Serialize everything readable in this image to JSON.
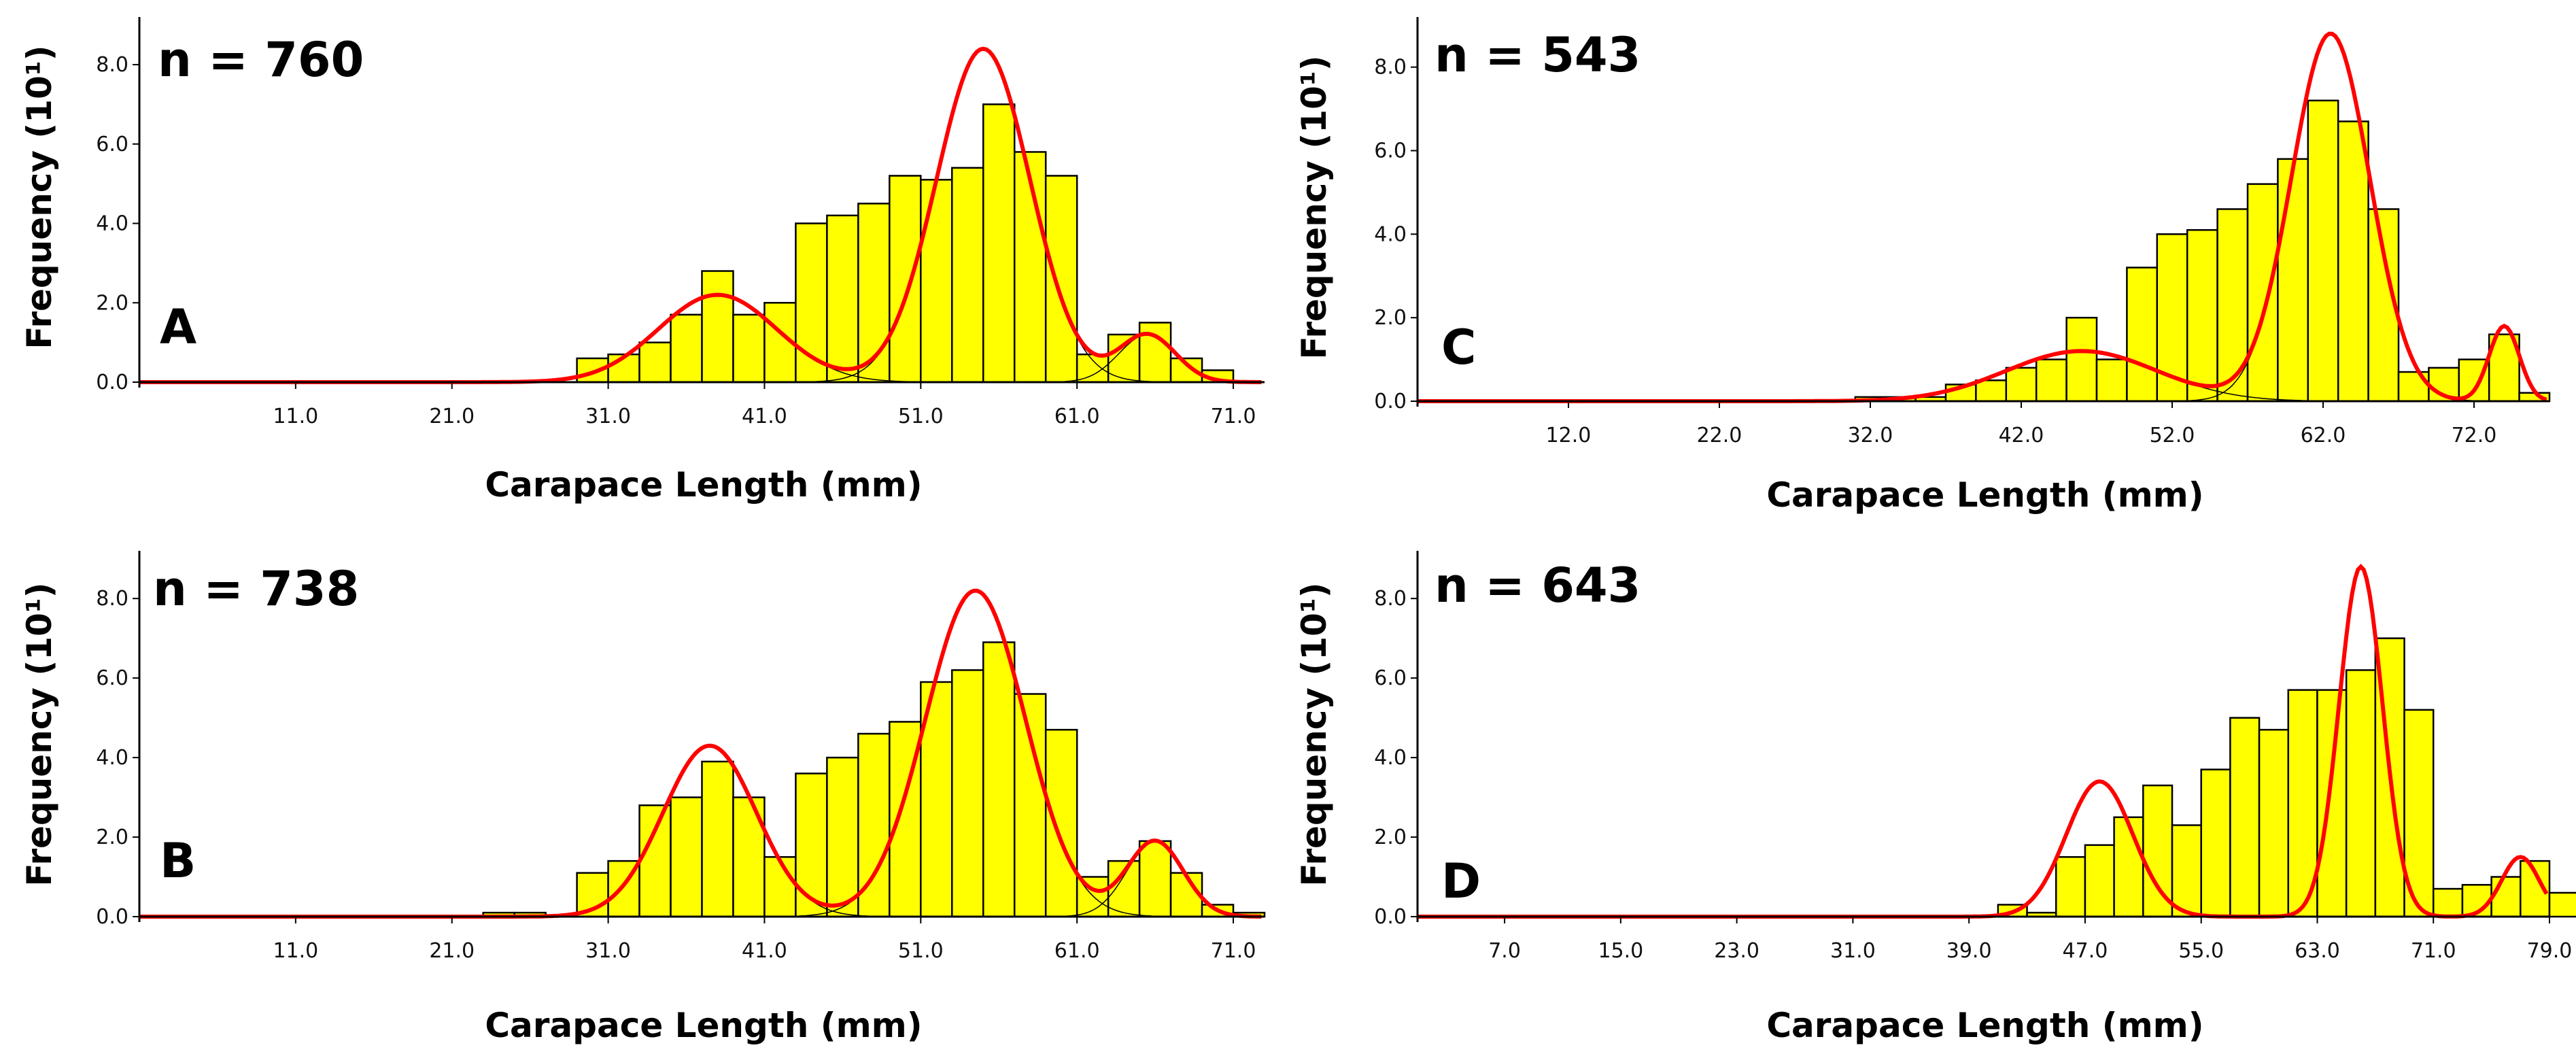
{
  "chart_data": [
    {
      "type": "bar",
      "panel": "A",
      "n_label": "n = 760",
      "xlabel": "Carapace Length (mm)",
      "ylabel": "Frequency (10¹)",
      "xlim": [
        1,
        73
      ],
      "ylim": [
        0,
        9.2
      ],
      "x_ticks": [
        11,
        21,
        31,
        41,
        51,
        61,
        71
      ],
      "x_tick_labels": [
        "11.0",
        "21.0",
        "31.0",
        "41.0",
        "51.0",
        "61.0",
        "71.0"
      ],
      "y_ticks": [
        0,
        2,
        4,
        6,
        8
      ],
      "y_tick_labels": [
        "0.0",
        "2.0",
        "4.0",
        "6.0",
        "8.0"
      ],
      "bin_width": 2,
      "bins": [
        {
          "x0": 29,
          "value": 0.6
        },
        {
          "x0": 31,
          "value": 0.7
        },
        {
          "x0": 33,
          "value": 1.0
        },
        {
          "x0": 35,
          "value": 1.7
        },
        {
          "x0": 37,
          "value": 2.8
        },
        {
          "x0": 39,
          "value": 1.7
        },
        {
          "x0": 41,
          "value": 2.0
        },
        {
          "x0": 43,
          "value": 4.0
        },
        {
          "x0": 45,
          "value": 4.2
        },
        {
          "x0": 47,
          "value": 4.5
        },
        {
          "x0": 49,
          "value": 5.2
        },
        {
          "x0": 51,
          "value": 5.1
        },
        {
          "x0": 53,
          "value": 5.4
        },
        {
          "x0": 55,
          "value": 7.0
        },
        {
          "x0": 57,
          "value": 5.8
        },
        {
          "x0": 59,
          "value": 5.2
        },
        {
          "x0": 61,
          "value": 0.7
        },
        {
          "x0": 63,
          "value": 1.2
        },
        {
          "x0": 65,
          "value": 1.5
        },
        {
          "x0": 67,
          "value": 0.6
        },
        {
          "x0": 69,
          "value": 0.3
        }
      ],
      "fit_components": [
        {
          "mean": 38,
          "sd": 3.8,
          "amp": 2.2
        },
        {
          "mean": 55,
          "sd": 3.0,
          "amp": 8.4
        },
        {
          "mean": 65.5,
          "sd": 1.8,
          "amp": 1.2
        }
      ]
    },
    {
      "type": "bar",
      "panel": "C",
      "n_label": "n = 543",
      "xlabel": "Carapace Length (mm)",
      "ylabel": "Frequency (10¹)",
      "xlim": [
        2,
        77
      ],
      "ylim": [
        0,
        9.2
      ],
      "x_ticks": [
        12,
        22,
        32,
        42,
        52,
        62,
        72
      ],
      "x_tick_labels": [
        "12.0",
        "22.0",
        "32.0",
        "42.0",
        "52.0",
        "62.0",
        "72.0"
      ],
      "y_ticks": [
        0,
        2,
        4,
        6,
        8
      ],
      "y_tick_labels": [
        "0.0",
        "2.0",
        "4.0",
        "6.0",
        "8.0"
      ],
      "bin_width": 2,
      "bins": [
        {
          "x0": 31,
          "value": 0.1
        },
        {
          "x0": 33,
          "value": 0.1
        },
        {
          "x0": 35,
          "value": 0.1
        },
        {
          "x0": 37,
          "value": 0.4
        },
        {
          "x0": 39,
          "value": 0.5
        },
        {
          "x0": 41,
          "value": 0.8
        },
        {
          "x0": 43,
          "value": 1.0
        },
        {
          "x0": 45,
          "value": 2.0
        },
        {
          "x0": 47,
          "value": 1.0
        },
        {
          "x0": 49,
          "value": 3.2
        },
        {
          "x0": 51,
          "value": 4.0
        },
        {
          "x0": 53,
          "value": 4.1
        },
        {
          "x0": 55,
          "value": 4.6
        },
        {
          "x0": 57,
          "value": 5.2
        },
        {
          "x0": 59,
          "value": 5.8
        },
        {
          "x0": 61,
          "value": 7.2
        },
        {
          "x0": 63,
          "value": 6.7
        },
        {
          "x0": 65,
          "value": 4.6
        },
        {
          "x0": 67,
          "value": 0.7
        },
        {
          "x0": 69,
          "value": 0.8
        },
        {
          "x0": 71,
          "value": 1.0
        },
        {
          "x0": 73,
          "value": 1.6
        },
        {
          "x0": 75,
          "value": 0.2
        }
      ],
      "fit_components": [
        {
          "mean": 46,
          "sd": 5.0,
          "amp": 1.2
        },
        {
          "mean": 62.5,
          "sd": 2.6,
          "amp": 8.8
        },
        {
          "mean": 74,
          "sd": 1.0,
          "amp": 1.8
        }
      ]
    },
    {
      "type": "bar",
      "panel": "B",
      "n_label": "n = 738",
      "xlabel": "Carapace Length (mm)",
      "ylabel": "Frequency (10¹)",
      "xlim": [
        1,
        73
      ],
      "ylim": [
        0,
        9.2
      ],
      "x_ticks": [
        11,
        21,
        31,
        41,
        51,
        61,
        71
      ],
      "x_tick_labels": [
        "11.0",
        "21.0",
        "31.0",
        "41.0",
        "51.0",
        "61.0",
        "71.0"
      ],
      "y_ticks": [
        0,
        2,
        4,
        6,
        8
      ],
      "y_tick_labels": [
        "0.0",
        "2.0",
        "4.0",
        "6.0",
        "8.0"
      ],
      "bin_width": 2,
      "bins": [
        {
          "x0": 23,
          "value": 0.1
        },
        {
          "x0": 25,
          "value": 0.1
        },
        {
          "x0": 29,
          "value": 1.1
        },
        {
          "x0": 31,
          "value": 1.4
        },
        {
          "x0": 33,
          "value": 2.8
        },
        {
          "x0": 35,
          "value": 3.0
        },
        {
          "x0": 37,
          "value": 3.9
        },
        {
          "x0": 39,
          "value": 3.0
        },
        {
          "x0": 41,
          "value": 1.5
        },
        {
          "x0": 43,
          "value": 3.6
        },
        {
          "x0": 45,
          "value": 4.0
        },
        {
          "x0": 47,
          "value": 4.6
        },
        {
          "x0": 49,
          "value": 4.9
        },
        {
          "x0": 51,
          "value": 5.9
        },
        {
          "x0": 53,
          "value": 6.2
        },
        {
          "x0": 55,
          "value": 6.9
        },
        {
          "x0": 57,
          "value": 5.6
        },
        {
          "x0": 59,
          "value": 4.7
        },
        {
          "x0": 61,
          "value": 1.0
        },
        {
          "x0": 63,
          "value": 1.4
        },
        {
          "x0": 65,
          "value": 1.9
        },
        {
          "x0": 67,
          "value": 1.1
        },
        {
          "x0": 69,
          "value": 0.3
        },
        {
          "x0": 71,
          "value": 0.1
        }
      ],
      "fit_components": [
        {
          "mean": 37.5,
          "sd": 3.0,
          "amp": 4.3
        },
        {
          "mean": 54.5,
          "sd": 3.2,
          "amp": 8.2
        },
        {
          "mean": 66,
          "sd": 1.8,
          "amp": 1.9
        }
      ]
    },
    {
      "type": "bar",
      "panel": "D",
      "n_label": "n = 643",
      "xlabel": "Carapace Length (mm)",
      "ylabel": "Frequency (10¹)",
      "xlim": [
        1,
        79
      ],
      "ylim": [
        0,
        9.2
      ],
      "x_ticks": [
        7,
        15,
        23,
        31,
        39,
        47,
        55,
        63,
        71,
        79
      ],
      "x_tick_labels": [
        "7.0",
        "15.0",
        "23.0",
        "31.0",
        "39.0",
        "47.0",
        "55.0",
        "63.0",
        "71.0",
        "79.0"
      ],
      "y_ticks": [
        0,
        2,
        4,
        6,
        8
      ],
      "y_tick_labels": [
        "0.0",
        "2.0",
        "4.0",
        "6.0",
        "8.0"
      ],
      "bin_width": 2,
      "bins": [
        {
          "x0": 41,
          "value": 0.3
        },
        {
          "x0": 43,
          "value": 0.1
        },
        {
          "x0": 45,
          "value": 1.5
        },
        {
          "x0": 47,
          "value": 1.8
        },
        {
          "x0": 49,
          "value": 2.5
        },
        {
          "x0": 51,
          "value": 3.3
        },
        {
          "x0": 53,
          "value": 2.3
        },
        {
          "x0": 55,
          "value": 3.7
        },
        {
          "x0": 57,
          "value": 5.0
        },
        {
          "x0": 59,
          "value": 4.7
        },
        {
          "x0": 61,
          "value": 5.7
        },
        {
          "x0": 63,
          "value": 5.7
        },
        {
          "x0": 65,
          "value": 6.2
        },
        {
          "x0": 67,
          "value": 7.0
        },
        {
          "x0": 69,
          "value": 5.2
        },
        {
          "x0": 71,
          "value": 0.7
        },
        {
          "x0": 73,
          "value": 0.8
        },
        {
          "x0": 75,
          "value": 1.0
        },
        {
          "x0": 77,
          "value": 1.4
        },
        {
          "x0": 79,
          "value": 0.6
        }
      ],
      "fit_components": [
        {
          "mean": 48,
          "sd": 2.3,
          "amp": 3.4
        },
        {
          "mean": 66,
          "sd": 1.5,
          "amp": 8.8
        },
        {
          "mean": 77,
          "sd": 1.3,
          "amp": 1.5
        }
      ]
    }
  ],
  "colors": {
    "bar_fill": "#ffff00",
    "bar_stroke": "#000000",
    "fit_line": "#ff0000",
    "component_line": "#000000",
    "axis": "#000000"
  }
}
